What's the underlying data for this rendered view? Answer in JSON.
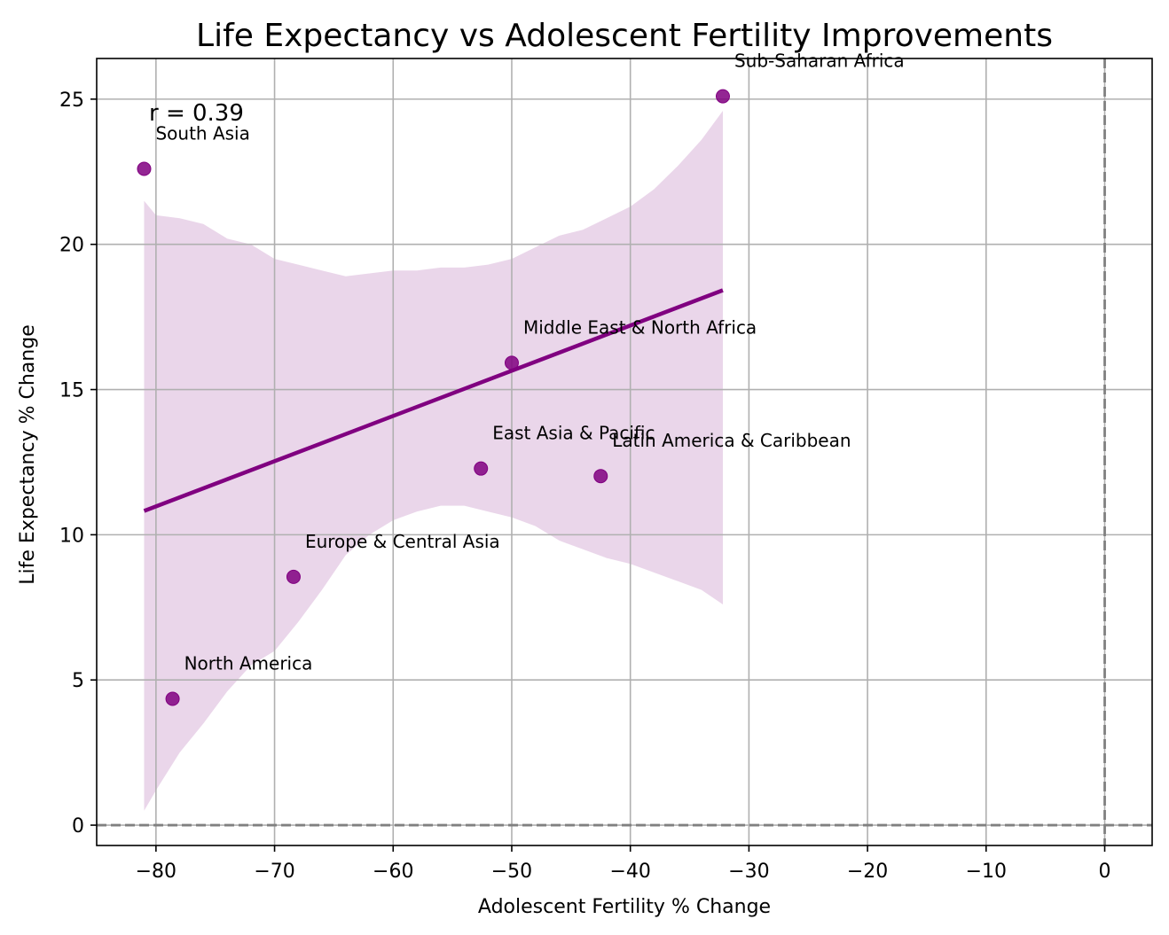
{
  "chart_data": {
    "type": "scatter",
    "title": "Life Expectancy vs Adolescent Fertility Improvements",
    "xlabel": "Adolescent Fertility % Change",
    "ylabel": "Life Expectancy % Change",
    "xlim": [
      -85,
      4
    ],
    "ylim": [
      -0.7,
      26.4
    ],
    "xticks": [
      -80,
      -70,
      -60,
      -50,
      -40,
      -30,
      -20,
      -10,
      0
    ],
    "yticks": [
      0,
      5,
      10,
      15,
      20,
      25
    ],
    "xtick_labels": [
      "−80",
      "−70",
      "−60",
      "−50",
      "−40",
      "−30",
      "−20",
      "−10",
      "0"
    ],
    "ytick_labels": [
      "0",
      "5",
      "10",
      "15",
      "20",
      "25"
    ],
    "grid": true,
    "annotation": "r = 0.39",
    "reference_lines": {
      "x": 0,
      "y": 0
    },
    "colors": {
      "points": "#800080",
      "line": "#800080",
      "band": "#d8b4d8",
      "reference": "#808080",
      "grid": "#b0b0b0"
    },
    "points": [
      {
        "label": "South Asia",
        "x": -81.0,
        "y": 22.6
      },
      {
        "label": "North America",
        "x": -78.6,
        "y": 4.35
      },
      {
        "label": "Europe & Central Asia",
        "x": -68.4,
        "y": 8.55
      },
      {
        "label": "East Asia & Pacific",
        "x": -52.6,
        "y": 12.28
      },
      {
        "label": "Middle East & North Africa",
        "x": -50.0,
        "y": 15.92
      },
      {
        "label": "Latin America & Caribbean",
        "x": -42.5,
        "y": 12.02
      },
      {
        "label": "Sub-Saharan Africa",
        "x": -32.2,
        "y": 25.1
      }
    ],
    "regression": {
      "x": [
        -81.0,
        -32.2
      ],
      "y": [
        10.82,
        18.42
      ]
    },
    "confidence_band": {
      "x": [
        -81,
        -80,
        -78,
        -76,
        -74,
        -72,
        -70,
        -68,
        -66,
        -64,
        -62,
        -60,
        -58,
        -56,
        -54,
        -52,
        -50,
        -48,
        -46,
        -44,
        -42,
        -40,
        -38,
        -36,
        -34,
        -32.2
      ],
      "upper": [
        21.5,
        21.0,
        20.9,
        20.7,
        20.2,
        20.0,
        19.5,
        19.3,
        19.1,
        18.9,
        19.0,
        19.1,
        19.1,
        19.2,
        19.2,
        19.3,
        19.5,
        19.9,
        20.3,
        20.5,
        20.9,
        21.3,
        21.9,
        22.7,
        23.6,
        24.6
      ],
      "lower": [
        0.5,
        1.2,
        2.5,
        3.5,
        4.6,
        5.5,
        6.0,
        7.0,
        8.1,
        9.3,
        10.0,
        10.5,
        10.8,
        11.0,
        11.0,
        10.8,
        10.6,
        10.3,
        9.8,
        9.5,
        9.2,
        9.0,
        8.7,
        8.4,
        8.1,
        7.6
      ]
    }
  }
}
